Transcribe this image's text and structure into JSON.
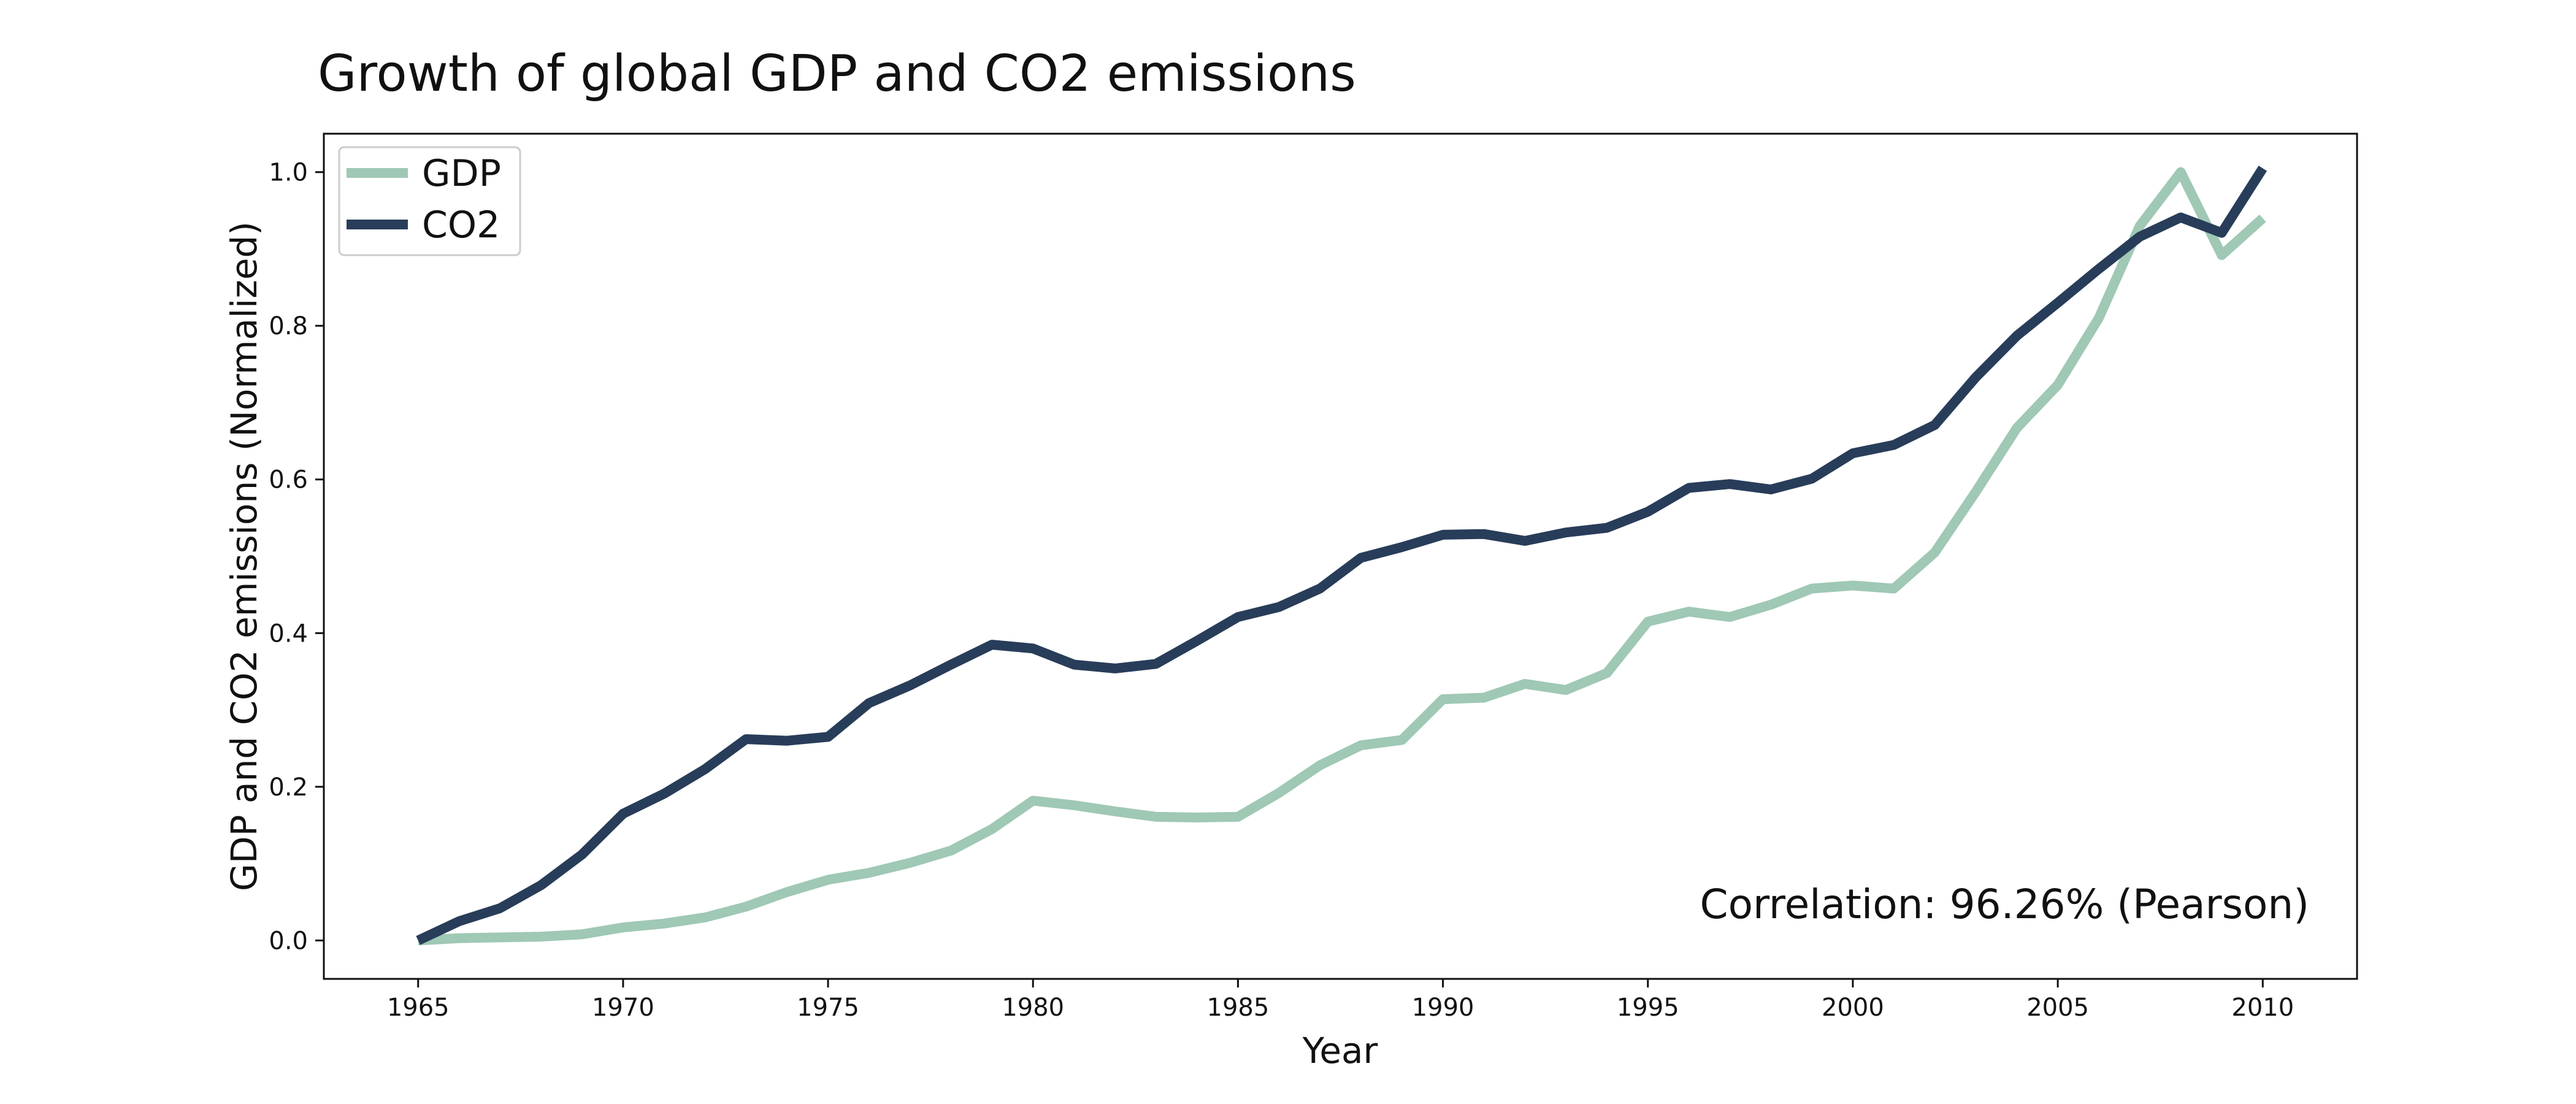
{
  "chart_data": {
    "type": "line",
    "title": "Growth of global GDP and CO2 emissions",
    "xlabel": "Year",
    "ylabel": "GDP and CO2 emissions (Normalized)",
    "annotation": "Correlation: 96.26% (Pearson)",
    "xlim": [
      1962.7,
      2012.3
    ],
    "ylim": [
      -0.05,
      1.05
    ],
    "x_ticks": [
      1965,
      1970,
      1975,
      1980,
      1985,
      1990,
      1995,
      2000,
      2005,
      2010
    ],
    "y_ticks": [
      0.0,
      0.2,
      0.4,
      0.6,
      0.8,
      1.0
    ],
    "grid": false,
    "legend_position": "top-left",
    "x": [
      1965,
      1966,
      1967,
      1968,
      1969,
      1970,
      1971,
      1972,
      1973,
      1974,
      1975,
      1976,
      1977,
      1978,
      1979,
      1980,
      1981,
      1982,
      1983,
      1984,
      1985,
      1986,
      1987,
      1988,
      1989,
      1990,
      1991,
      1992,
      1993,
      1994,
      1995,
      1996,
      1997,
      1998,
      1999,
      2000,
      2001,
      2002,
      2003,
      2004,
      2005,
      2006,
      2007,
      2008,
      2009,
      2010
    ],
    "series": [
      {
        "name": "GDP",
        "color": "#9fc8b5",
        "values": [
          0.0,
          0.003,
          0.004,
          0.005,
          0.008,
          0.017,
          0.022,
          0.03,
          0.044,
          0.063,
          0.079,
          0.088,
          0.101,
          0.117,
          0.145,
          0.182,
          0.176,
          0.168,
          0.161,
          0.16,
          0.161,
          0.192,
          0.228,
          0.254,
          0.261,
          0.314,
          0.316,
          0.334,
          0.326,
          0.348,
          0.415,
          0.428,
          0.421,
          0.437,
          0.458,
          0.462,
          0.458,
          0.505,
          0.584,
          0.667,
          0.723,
          0.81,
          0.93,
          1.0,
          0.892,
          0.94
        ]
      },
      {
        "name": "CO2",
        "color": "#283d59",
        "values": [
          0.0,
          0.025,
          0.042,
          0.072,
          0.112,
          0.165,
          0.191,
          0.223,
          0.262,
          0.26,
          0.265,
          0.309,
          0.332,
          0.359,
          0.385,
          0.38,
          0.359,
          0.354,
          0.36,
          0.39,
          0.421,
          0.434,
          0.458,
          0.498,
          0.512,
          0.528,
          0.529,
          0.52,
          0.531,
          0.537,
          0.558,
          0.589,
          0.594,
          0.587,
          0.601,
          0.634,
          0.645,
          0.671,
          0.733,
          0.787,
          0.83,
          0.874,
          0.916,
          0.941,
          0.921,
          1.005
        ]
      }
    ]
  }
}
